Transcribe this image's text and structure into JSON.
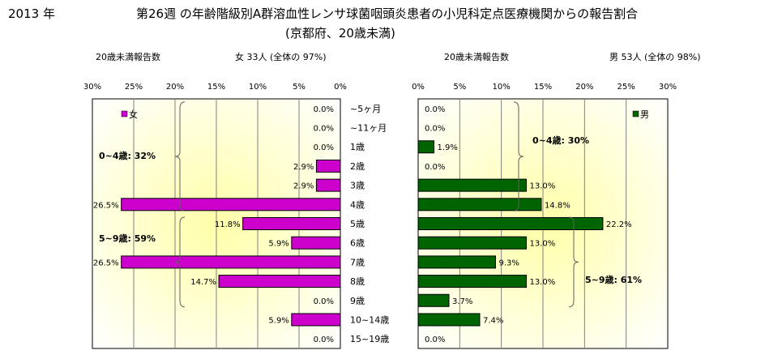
{
  "header": {
    "year": "2013 年",
    "title": "第26週 の年齢階級別A群溶血性レンサ球菌咽頭炎患者の小児科定点医療機関からの報告割合",
    "subtitle": "(京都府、20歳未満)",
    "female_count_label": "20歳未満報告数",
    "female_count_value": "女  33人 (全体の  97%)",
    "male_count_label": "20歳未満報告数",
    "male_count_value": "男  53人 (全体の  98%)"
  },
  "colors": {
    "female": "#cc00cc",
    "male": "#006400",
    "bg_yellow": "#ffffb0"
  },
  "chart_data": [
    {
      "type": "bar",
      "orientation": "horizontal",
      "direction": "leftward",
      "legend": "女",
      "legend_placement": "top-left",
      "xlim": [
        0,
        30
      ],
      "ticks": [
        "30%",
        "25%",
        "20%",
        "15%",
        "10%",
        "5%",
        "0%"
      ],
      "categories": [
        "~5ヶ月",
        "~11ヶ月",
        "1歳",
        "2歳",
        "3歳",
        "4歳",
        "5歳",
        "6歳",
        "7歳",
        "8歳",
        "9歳",
        "10~14歳",
        "15~19歳"
      ],
      "values": [
        0.0,
        0.0,
        0.0,
        2.9,
        2.9,
        26.5,
        11.8,
        5.9,
        26.5,
        14.7,
        0.0,
        5.9,
        0.0
      ],
      "labels": [
        "0.0%",
        "0.0%",
        "0.0%",
        "2.9%",
        "2.9%",
        "26.5%",
        "11.8%",
        "5.9%",
        "26.5%",
        "14.7%",
        "0.0%",
        "5.9%",
        "0.0%"
      ],
      "annotations": [
        "0~4歳: 32%",
        "5~9歳: 59%"
      ]
    },
    {
      "type": "bar",
      "orientation": "horizontal",
      "direction": "rightward",
      "legend": "男",
      "legend_placement": "top-right",
      "xlim": [
        0,
        30
      ],
      "ticks": [
        "0%",
        "5%",
        "10%",
        "15%",
        "20%",
        "25%",
        "30%"
      ],
      "categories": [
        "~5ヶ月",
        "~11ヶ月",
        "1歳",
        "2歳",
        "3歳",
        "4歳",
        "5歳",
        "6歳",
        "7歳",
        "8歳",
        "9歳",
        "10~14歳",
        "15~19歳"
      ],
      "values": [
        0.0,
        0.0,
        1.9,
        0.0,
        13.0,
        14.8,
        22.2,
        13.0,
        9.3,
        13.0,
        3.7,
        7.4,
        0.0
      ],
      "labels": [
        "0.0%",
        "0.0%",
        "1.9%",
        "0.0%",
        "13.0%",
        "14.8%",
        "22.2%",
        "13.0%",
        "9.3%",
        "13.0%",
        "3.7%",
        "7.4%",
        "0.0%"
      ],
      "annotations": [
        "0~4歳: 30%",
        "5~9歳: 61%"
      ]
    }
  ]
}
